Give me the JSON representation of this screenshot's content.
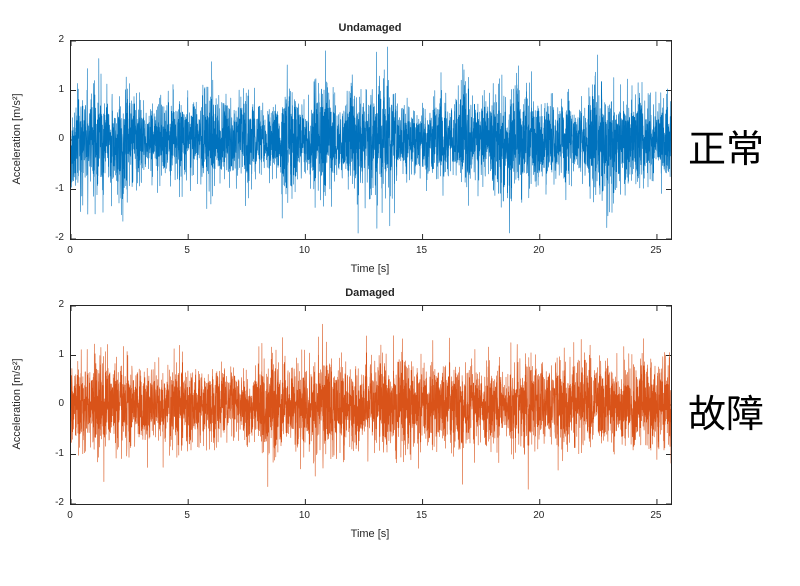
{
  "figure": {
    "background": "#ffffff",
    "description": "Two stacked acceleration time-history plots comparing undamaged (normal) and damaged (fault) vibration signals"
  },
  "chart_data": [
    {
      "type": "line",
      "title": "Undamaged",
      "xlabel": "Time [s]",
      "ylabel": "Acceleration [m/s²]",
      "side_label": "正常",
      "line_color": "#0072BD",
      "axes_color": "#262626",
      "xlim": [
        0,
        25.6
      ],
      "ylim": [
        -2,
        2
      ],
      "xticks": [
        0,
        5,
        10,
        15,
        20,
        25
      ],
      "yticks": [
        -2,
        -1,
        0,
        1,
        2
      ],
      "grid": false,
      "legend": null,
      "signal": {
        "kind": "broadband-random-vibration",
        "n": 5200,
        "seed": 20231,
        "std": 0.45,
        "env_base": 0.62,
        "env_gain": 0.85,
        "spike_prob": 0.0016,
        "spike_gain": 2.1,
        "clip": 1.88,
        "mean": 0,
        "approx_peak_positive": 1.85,
        "approx_peak_negative": -1.75
      }
    },
    {
      "type": "line",
      "title": "Damaged",
      "xlabel": "Time [s]",
      "ylabel": "Acceleration [m/s²]",
      "side_label": "故障",
      "line_color": "#D95319",
      "axes_color": "#262626",
      "xlim": [
        0,
        25.6
      ],
      "ylim": [
        -2,
        2
      ],
      "xticks": [
        0,
        5,
        10,
        15,
        20,
        25
      ],
      "yticks": [
        -2,
        -1,
        0,
        1,
        2
      ],
      "grid": false,
      "legend": null,
      "signal": {
        "kind": "broadband-random-vibration",
        "n": 5200,
        "seed": 77113,
        "std": 0.4,
        "env_base": 0.75,
        "env_gain": 0.55,
        "spike_prob": 0.0012,
        "spike_gain": 2.0,
        "clip": 1.7,
        "mean": 0,
        "approx_peak_positive": 1.3,
        "approx_peak_negative": -1.7
      }
    }
  ]
}
